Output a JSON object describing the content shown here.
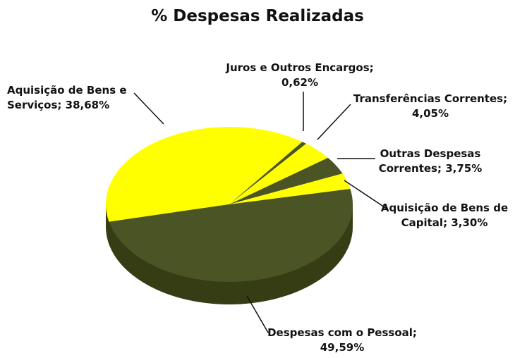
{
  "chart_data": {
    "type": "pie",
    "title": "% Despesas Realizadas",
    "categories": [
      "Aquisição de Bens e Serviços;",
      "Juros e Outros Encargos;",
      "Transferências Correntes;",
      "Outras Despesas Correntes;",
      "Aquisição de Bens de Capital;",
      "Despesas com o Pessoal;"
    ],
    "values": [
      38.68,
      0.62,
      4.05,
      3.75,
      3.3,
      49.59
    ],
    "value_labels": [
      "38,68%",
      "0,62%",
      "4,05%",
      "3,75%",
      "3,30%",
      "49,59%"
    ],
    "colors": [
      "#ffff00",
      "#4b5424",
      "#ffff00",
      "#4b5424",
      "#ffff00",
      "#4b5424"
    ]
  }
}
